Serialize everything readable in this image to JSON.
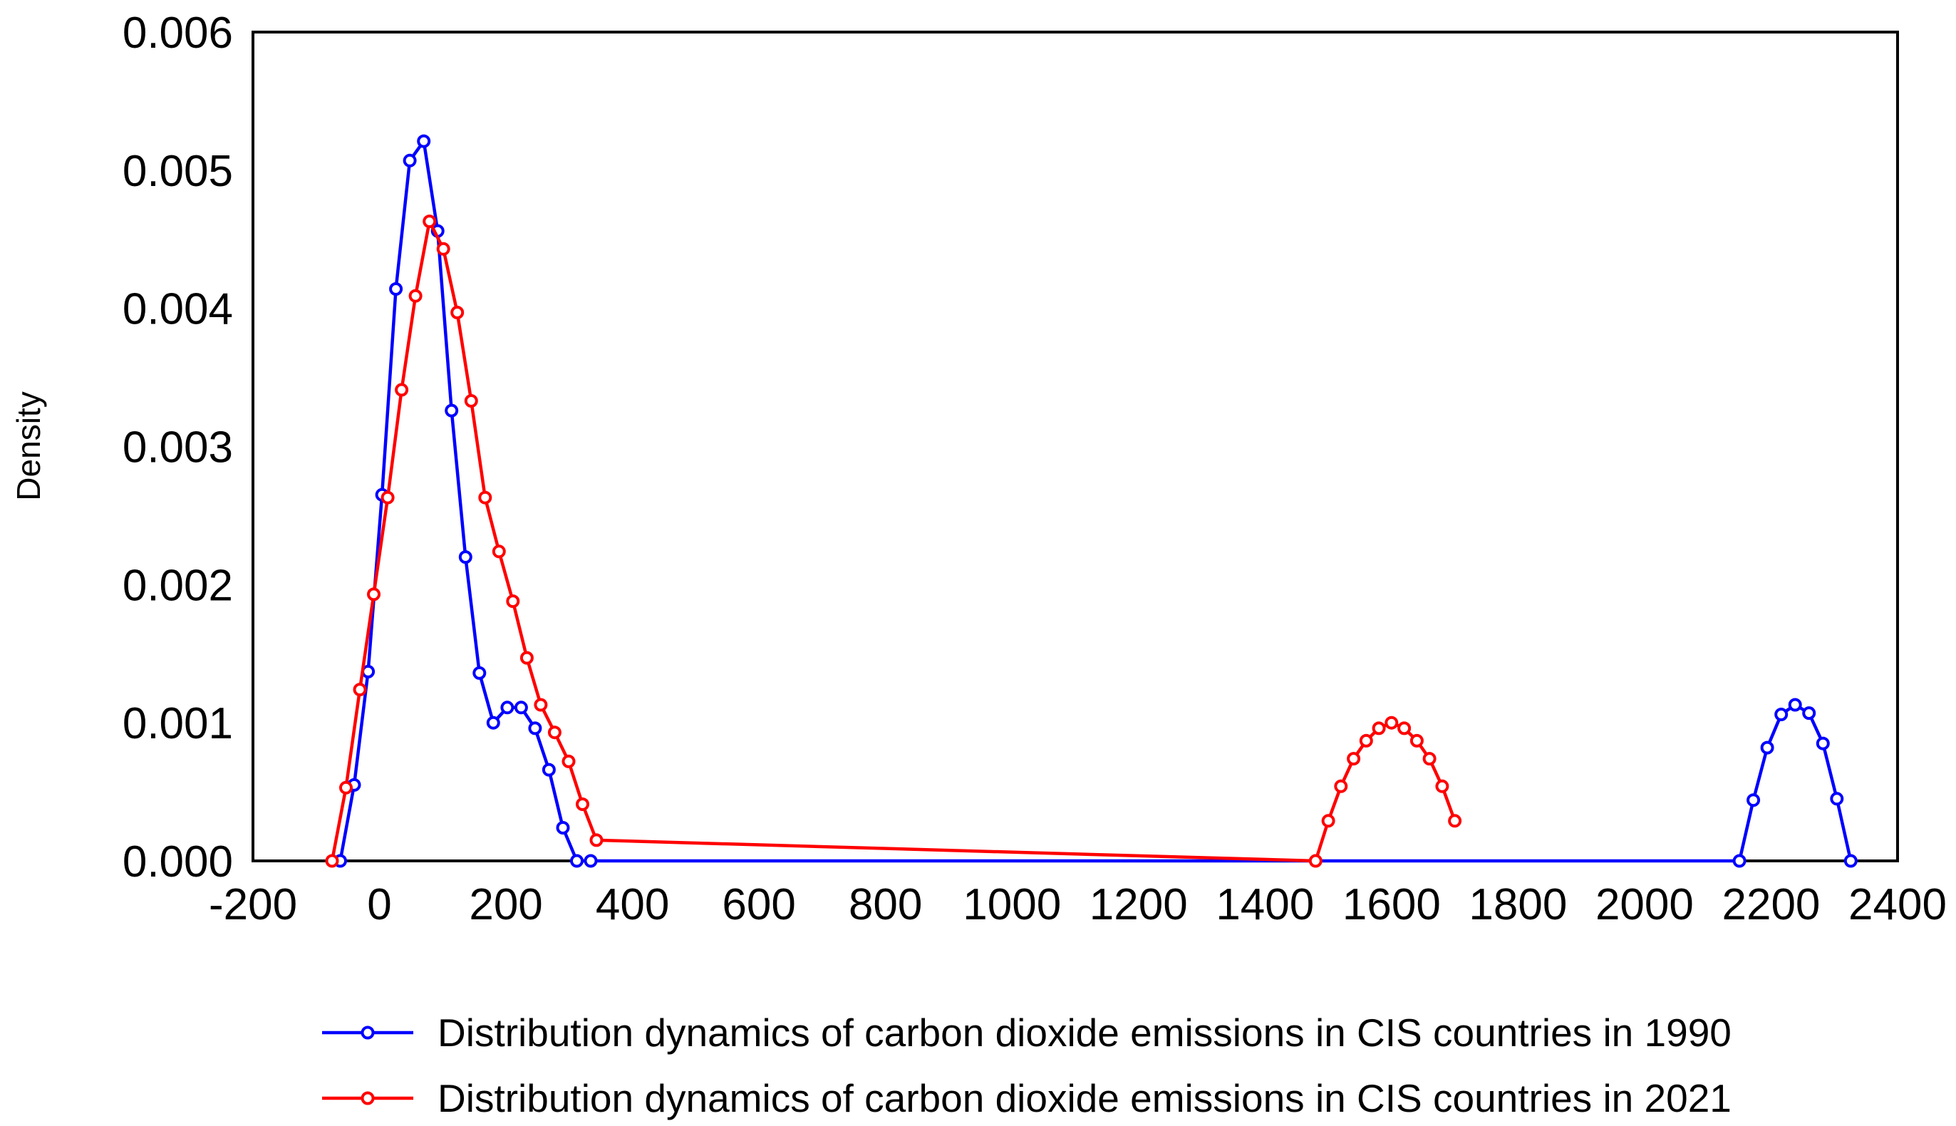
{
  "chart_data": {
    "type": "line",
    "title": "",
    "xlabel": "",
    "ylabel": "Density",
    "xlim": [
      -200,
      2400
    ],
    "ylim": [
      0,
      0.006
    ],
    "xticks": [
      "-200",
      "0",
      "200",
      "400",
      "600",
      "800",
      "1000",
      "1200",
      "1400",
      "1600",
      "1800",
      "2000",
      "2200",
      "2400"
    ],
    "xtick_values": [
      -200,
      0,
      200,
      400,
      600,
      800,
      1000,
      1200,
      1400,
      1600,
      1800,
      2000,
      2200,
      2400
    ],
    "yticks": [
      "0.000",
      "0.001",
      "0.002",
      "0.003",
      "0.004",
      "0.005",
      "0.006"
    ],
    "ytick_values": [
      0,
      0.001,
      0.002,
      0.003,
      0.004,
      0.005,
      0.006
    ],
    "grid": false,
    "legend_position": "bottom",
    "series": [
      {
        "name": "Distribution dynamics of carbon dioxide emissions in CIS countries in 1990",
        "color": "#0000ff",
        "x": [
          -62,
          -40,
          -18,
          4,
          26,
          48,
          70,
          92,
          114,
          136,
          158,
          180,
          202,
          224,
          246,
          268,
          290,
          312,
          334,
          2150,
          2172,
          2194,
          2216,
          2238,
          2260,
          2282,
          2304,
          2326
        ],
        "y": [
          0.0,
          0.00055,
          0.00137,
          0.00265,
          0.00414,
          0.00507,
          0.00521,
          0.00456,
          0.00326,
          0.0022,
          0.00136,
          0.001,
          0.00111,
          0.00111,
          0.00096,
          0.00066,
          0.00024,
          0.0,
          0.0,
          0.0,
          0.00044,
          0.00082,
          0.00106,
          0.00113,
          0.00107,
          0.00085,
          0.00045,
          0.0
        ]
      },
      {
        "name": "Distribution dynamics of carbon dioxide emissions in CIS countries in 2021",
        "color": "#ff0000",
        "x": [
          -75,
          -53,
          -31,
          -9,
          13,
          35,
          57,
          79,
          101,
          123,
          145,
          167,
          189,
          211,
          233,
          255,
          277,
          299,
          321,
          343,
          1480,
          1500,
          1520,
          1540,
          1560,
          1580,
          1600,
          1620,
          1640,
          1660,
          1680,
          1700
        ],
        "y": [
          0.0,
          0.00053,
          0.00124,
          0.00193,
          0.00263,
          0.00341,
          0.00409,
          0.00463,
          0.00443,
          0.00397,
          0.00333,
          0.00263,
          0.00224,
          0.00188,
          0.00147,
          0.00113,
          0.00093,
          0.00072,
          0.00041,
          0.00015,
          0.0,
          0.00029,
          0.00054,
          0.00074,
          0.00087,
          0.00096,
          0.001,
          0.00096,
          0.00087,
          0.00074,
          0.00054,
          0.00029
        ]
      }
    ]
  }
}
